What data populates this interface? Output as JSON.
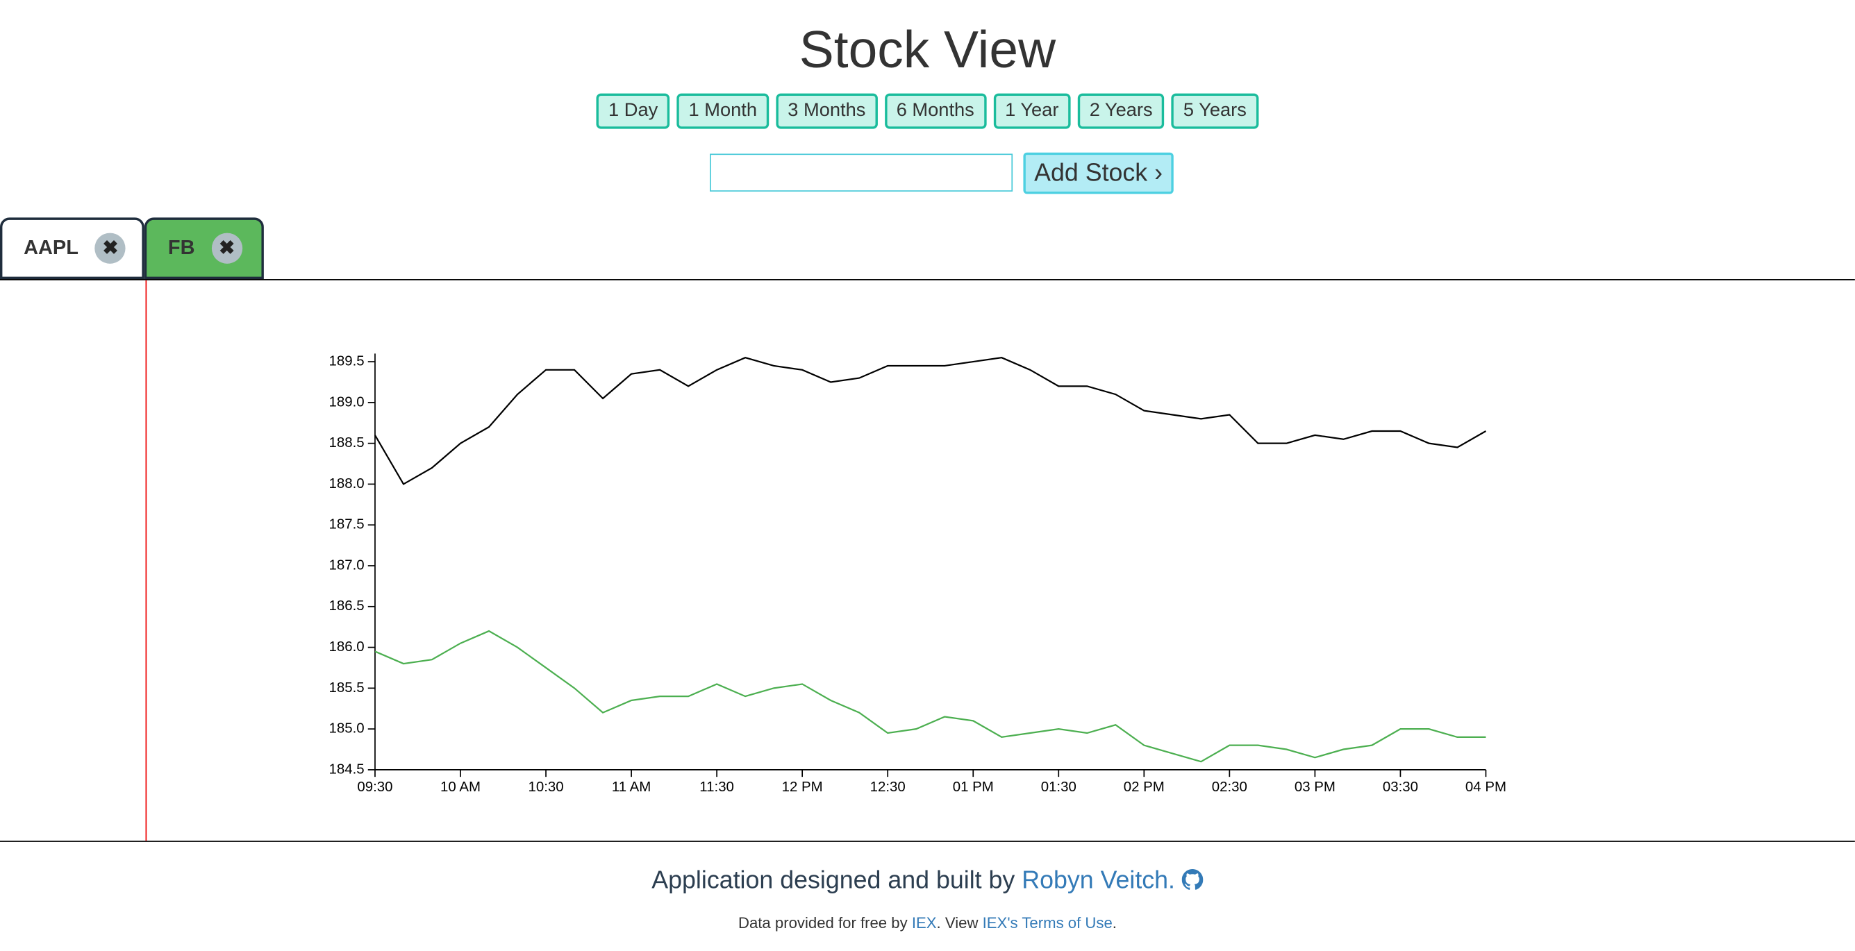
{
  "header": {
    "title": "Stock View"
  },
  "ranges": [
    "1 Day",
    "1 Month",
    "3 Months",
    "6 Months",
    "1 Year",
    "2 Years",
    "5 Years"
  ],
  "add_button": "Add Stock ›",
  "tabs": [
    {
      "label": "AAPL"
    },
    {
      "label": "FB"
    }
  ],
  "chart_data": {
    "type": "line",
    "x": [
      570,
      580,
      590,
      600,
      610,
      620,
      630,
      640,
      650,
      660,
      670,
      680,
      690,
      700,
      710,
      720,
      730,
      740,
      750,
      760,
      770,
      780,
      790,
      800,
      810,
      820,
      830,
      840,
      850,
      860,
      870,
      880,
      890,
      900,
      910,
      920,
      930,
      940,
      950,
      960
    ],
    "xlim": [
      570,
      960
    ],
    "xticks": [
      {
        "value": 570,
        "label": "09:30"
      },
      {
        "value": 600,
        "label": "10 AM"
      },
      {
        "value": 630,
        "label": "10:30"
      },
      {
        "value": 660,
        "label": "11 AM"
      },
      {
        "value": 690,
        "label": "11:30"
      },
      {
        "value": 720,
        "label": "12 PM"
      },
      {
        "value": 750,
        "label": "12:30"
      },
      {
        "value": 780,
        "label": "01 PM"
      },
      {
        "value": 810,
        "label": "01:30"
      },
      {
        "value": 840,
        "label": "02 PM"
      },
      {
        "value": 870,
        "label": "02:30"
      },
      {
        "value": 900,
        "label": "03 PM"
      },
      {
        "value": 930,
        "label": "03:30"
      },
      {
        "value": 960,
        "label": "04 PM"
      }
    ],
    "ylim": [
      184.5,
      189.6
    ],
    "yticks": [
      {
        "value": 184.5,
        "label": "184.5"
      },
      {
        "value": 185,
        "label": "185.0"
      },
      185.5,
      {
        "value": 186,
        "label": "186.0"
      },
      186.5,
      {
        "value": 187,
        "label": "187.0"
      },
      187.5,
      {
        "value": 188,
        "label": "188.0"
      },
      188.5,
      {
        "value": 189,
        "label": "189.0"
      },
      189.5
    ],
    "series": [
      {
        "name": "AAPL",
        "color": "#000000",
        "values": [
          188.6,
          188.0,
          188.2,
          188.5,
          188.7,
          189.1,
          189.4,
          189.4,
          189.05,
          189.35,
          189.4,
          189.2,
          189.4,
          189.55,
          189.45,
          189.4,
          189.25,
          189.3,
          189.45,
          189.45,
          189.45,
          189.5,
          189.55,
          189.4,
          189.2,
          189.2,
          189.1,
          188.9,
          188.85,
          188.8,
          188.85,
          188.5,
          188.5,
          188.6,
          188.55,
          188.65,
          188.65,
          188.5,
          188.45,
          188.65
        ]
      },
      {
        "name": "FB",
        "color": "#4caf50",
        "values": [
          185.95,
          185.8,
          185.85,
          186.05,
          186.2,
          186.0,
          185.75,
          185.5,
          185.2,
          185.35,
          185.4,
          185.4,
          185.55,
          185.4,
          185.5,
          185.55,
          185.35,
          185.2,
          184.95,
          185.0,
          185.15,
          185.1,
          184.9,
          184.95,
          185.0,
          184.95,
          185.05,
          184.8,
          184.7,
          184.6,
          184.8,
          184.8,
          184.75,
          184.65,
          184.75,
          184.8,
          185.0,
          185.0,
          184.9,
          184.9
        ]
      }
    ]
  },
  "footer": {
    "credit": "Application designed and built by ",
    "author": "Robyn Veitch.",
    "data_prefix": "Data provided for free by ",
    "iex": "IEX",
    ".view": ". View ",
    "terms": "IEX's Terms of Use",
    "end": "."
  }
}
